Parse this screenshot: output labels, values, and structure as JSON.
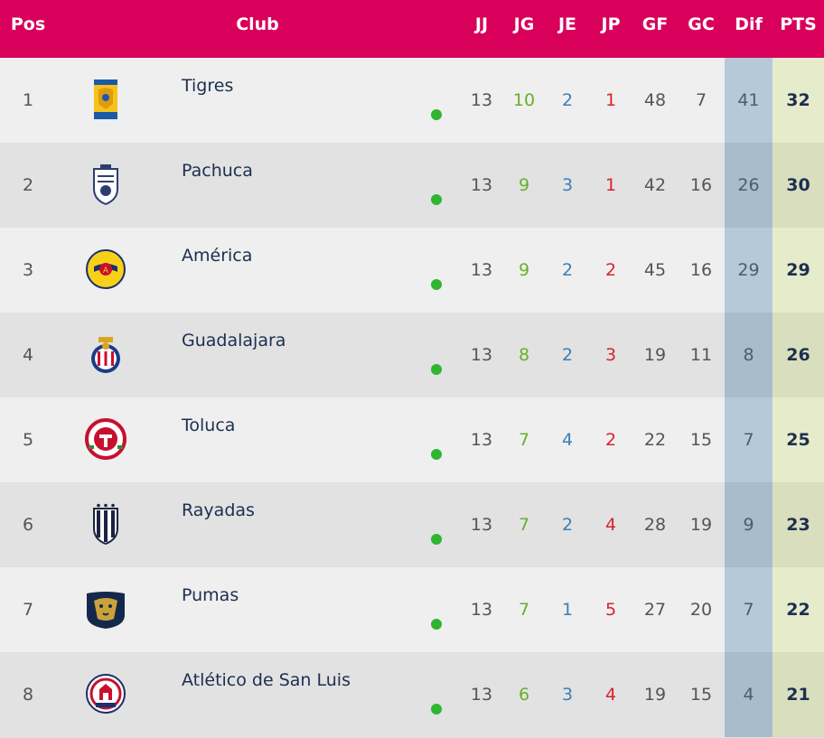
{
  "header": {
    "pos": "Pos",
    "club": "Club",
    "jj": "JJ",
    "jg": "JG",
    "je": "JE",
    "jp": "JP",
    "gf": "GF",
    "gc": "GC",
    "dif": "Dif",
    "pts": "PTS"
  },
  "colors": {
    "header_bg": "#d8005a",
    "won": "#6aaf2a",
    "drawn": "#3a7fb6",
    "lost": "#d8232a",
    "form_dot": "#2fb52f"
  },
  "rows": [
    {
      "pos": "1",
      "club": "Tigres",
      "logo": "tigres-crest-icon",
      "jj": "13",
      "jg": "10",
      "je": "2",
      "jp": "1",
      "gf": "48",
      "gc": "7",
      "dif": "41",
      "pts": "32"
    },
    {
      "pos": "2",
      "club": "Pachuca",
      "logo": "pachuca-crest-icon",
      "jj": "13",
      "jg": "9",
      "je": "3",
      "jp": "1",
      "gf": "42",
      "gc": "16",
      "dif": "26",
      "pts": "30"
    },
    {
      "pos": "3",
      "club": "América",
      "logo": "america-crest-icon",
      "jj": "13",
      "jg": "9",
      "je": "2",
      "jp": "2",
      "gf": "45",
      "gc": "16",
      "dif": "29",
      "pts": "29"
    },
    {
      "pos": "4",
      "club": "Guadalajara",
      "logo": "guadalajara-crest-icon",
      "jj": "13",
      "jg": "8",
      "je": "2",
      "jp": "3",
      "gf": "19",
      "gc": "11",
      "dif": "8",
      "pts": "26"
    },
    {
      "pos": "5",
      "club": "Toluca",
      "logo": "toluca-crest-icon",
      "jj": "13",
      "jg": "7",
      "je": "4",
      "jp": "2",
      "gf": "22",
      "gc": "15",
      "dif": "7",
      "pts": "25"
    },
    {
      "pos": "6",
      "club": "Rayadas",
      "logo": "rayadas-crest-icon",
      "jj": "13",
      "jg": "7",
      "je": "2",
      "jp": "4",
      "gf": "28",
      "gc": "19",
      "dif": "9",
      "pts": "23"
    },
    {
      "pos": "7",
      "club": "Pumas",
      "logo": "pumas-crest-icon",
      "jj": "13",
      "jg": "7",
      "je": "1",
      "jp": "5",
      "gf": "27",
      "gc": "20",
      "dif": "7",
      "pts": "22"
    },
    {
      "pos": "8",
      "club": "Atlético de San Luis",
      "logo": "san-luis-crest-icon",
      "jj": "13",
      "jg": "6",
      "je": "3",
      "jp": "4",
      "gf": "19",
      "gc": "15",
      "dif": "4",
      "pts": "21"
    }
  ]
}
